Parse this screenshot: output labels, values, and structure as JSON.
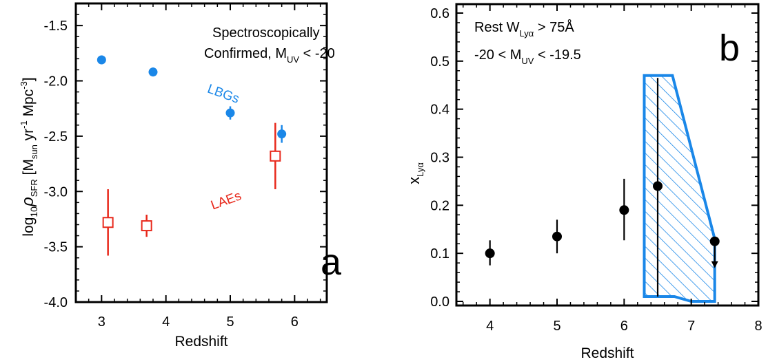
{
  "chart_data": [
    {
      "type": "scatter",
      "panel_label": "a",
      "xlabel": "Redshift",
      "ylabel": {
        "prefix": "log",
        "prefix_sub": "10",
        "rho": "ρ",
        "rho_sub": "SFR",
        "unit_open": " [M",
        "unit_sub": "sun",
        "unit_yr": " yr",
        "unit_yr_sup": "-1",
        "unit_mpc": " Mpc",
        "unit_mpc_sup": "-3",
        "unit_close": "]"
      },
      "xlim": [
        2.6,
        6.5
      ],
      "ylim": [
        -4.0,
        -1.3
      ],
      "xticks": [
        3,
        4,
        5,
        6
      ],
      "yticks": [
        -4.0,
        -3.5,
        -3.0,
        -2.5,
        -2.0,
        -1.5
      ],
      "ytick_labels": [
        "-4.0",
        "-3.5",
        "-3.0",
        "-2.5",
        "-2.0",
        "-1.5"
      ],
      "annotation": {
        "line1": "Spectroscopically",
        "line2_pre": "Confirmed, M",
        "line2_sub": "UV",
        "line2_post": " < -20"
      },
      "series": [
        {
          "name": "LBGs",
          "color": "#1a87e8",
          "marker": "filled-circle",
          "points": [
            {
              "x": 3.0,
              "y": -1.81,
              "ylo": -1.85,
              "yhi": -1.77
            },
            {
              "x": 3.8,
              "y": -1.92,
              "ylo": -1.96,
              "yhi": -1.88
            },
            {
              "x": 5.0,
              "y": -2.29,
              "ylo": -2.35,
              "yhi": -2.23
            },
            {
              "x": 5.8,
              "y": -2.48,
              "ylo": -2.56,
              "yhi": -2.4
            }
          ]
        },
        {
          "name": "LAEs",
          "color": "#e8291c",
          "marker": "open-square",
          "points": [
            {
              "x": 3.1,
              "y": -3.28,
              "ylo": -3.58,
              "yhi": -2.98
            },
            {
              "x": 3.7,
              "y": -3.31,
              "ylo": -3.41,
              "yhi": -3.21
            },
            {
              "x": 5.7,
              "y": -2.68,
              "ylo": -2.98,
              "yhi": -2.38
            }
          ]
        }
      ]
    },
    {
      "type": "scatter",
      "panel_label": "b",
      "xlabel": "Redshift",
      "ylabel": {
        "main": "x",
        "sub": "Lyα"
      },
      "xlim": [
        3.5,
        8.0
      ],
      "ylim": [
        0.0,
        0.61
      ],
      "xticks": [
        4,
        5,
        6,
        7,
        8
      ],
      "yticks": [
        0.0,
        0.1,
        0.2,
        0.3,
        0.4,
        0.5,
        0.6
      ],
      "ytick_labels": [
        "0.0",
        "0.1",
        "0.2",
        "0.3",
        "0.4",
        "0.5",
        "0.6"
      ],
      "annotation": {
        "line1_pre": "Rest W",
        "line1_sub": "Lyα",
        "line1_post": " > 75Å",
        "line2_pre": "-20 < M",
        "line2_sub": "UV",
        "line2_post": " < -19.5"
      },
      "points": [
        {
          "x": 4.0,
          "y": 0.1,
          "ylo": 0.075,
          "yhi": 0.127
        },
        {
          "x": 5.0,
          "y": 0.135,
          "ylo": 0.1,
          "yhi": 0.17
        },
        {
          "x": 6.0,
          "y": 0.19,
          "ylo": 0.127,
          "yhi": 0.255
        },
        {
          "x": 6.5,
          "y": 0.24,
          "ylo": 0.01,
          "yhi": 0.465
        },
        {
          "x": 7.35,
          "y": 0.125,
          "upper_limit": true,
          "ylo": 0.075
        }
      ],
      "region": {
        "color": "#1a87e8",
        "fill": "hatched",
        "vertices": [
          [
            6.3,
            0.47
          ],
          [
            6.72,
            0.47
          ],
          [
            7.35,
            0.13
          ],
          [
            7.35,
            0.0
          ],
          [
            7.0,
            0.0
          ],
          [
            6.75,
            0.01
          ],
          [
            6.3,
            0.01
          ]
        ]
      }
    }
  ]
}
